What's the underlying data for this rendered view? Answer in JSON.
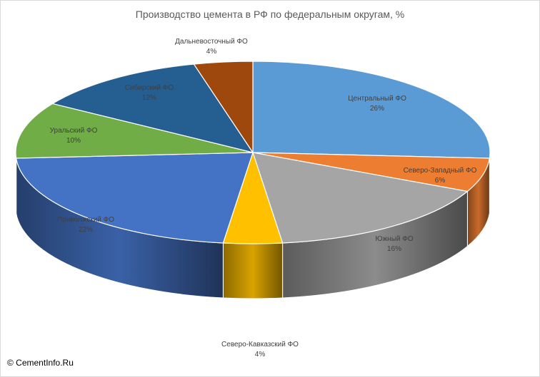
{
  "chart_data": {
    "type": "pie",
    "title": "Производство цемента в РФ по федеральным округам, %",
    "style": "3d",
    "legend": "none",
    "slices": [
      {
        "label": "Центральный ФО",
        "value": 26,
        "value_label": "26%",
        "color": "#5b9bd5",
        "text_color": "#404040"
      },
      {
        "label": "Северо-Западный ФО",
        "value": 6,
        "value_label": "6%",
        "color": "#ed7d31",
        "text_color": "#404040"
      },
      {
        "label": "Южный ФО",
        "value": 16,
        "value_label": "16%",
        "color": "#a5a5a5",
        "text_color": "#404040"
      },
      {
        "label": "Северо-Кавказский ФО",
        "value": 4,
        "value_label": "4%",
        "color": "#ffc000",
        "text_color": "#404040"
      },
      {
        "label": "Приволжский ФО",
        "value": 22,
        "value_label": "22%",
        "color": "#4472c4",
        "text_color": "#404040"
      },
      {
        "label": "Уральский ФО",
        "value": 10,
        "value_label": "10%",
        "color": "#70ad47",
        "text_color": "#404040"
      },
      {
        "label": "Сибирский ФО",
        "value": 12,
        "value_label": "12%",
        "color": "#255e91",
        "text_color": "#404040"
      },
      {
        "label": "Дальневосточный ФО",
        "value": 4,
        "value_label": "4%",
        "color": "#9e480e",
        "text_color": "#404040"
      }
    ]
  },
  "footer": {
    "copyright": "© CementInfo.Ru"
  }
}
